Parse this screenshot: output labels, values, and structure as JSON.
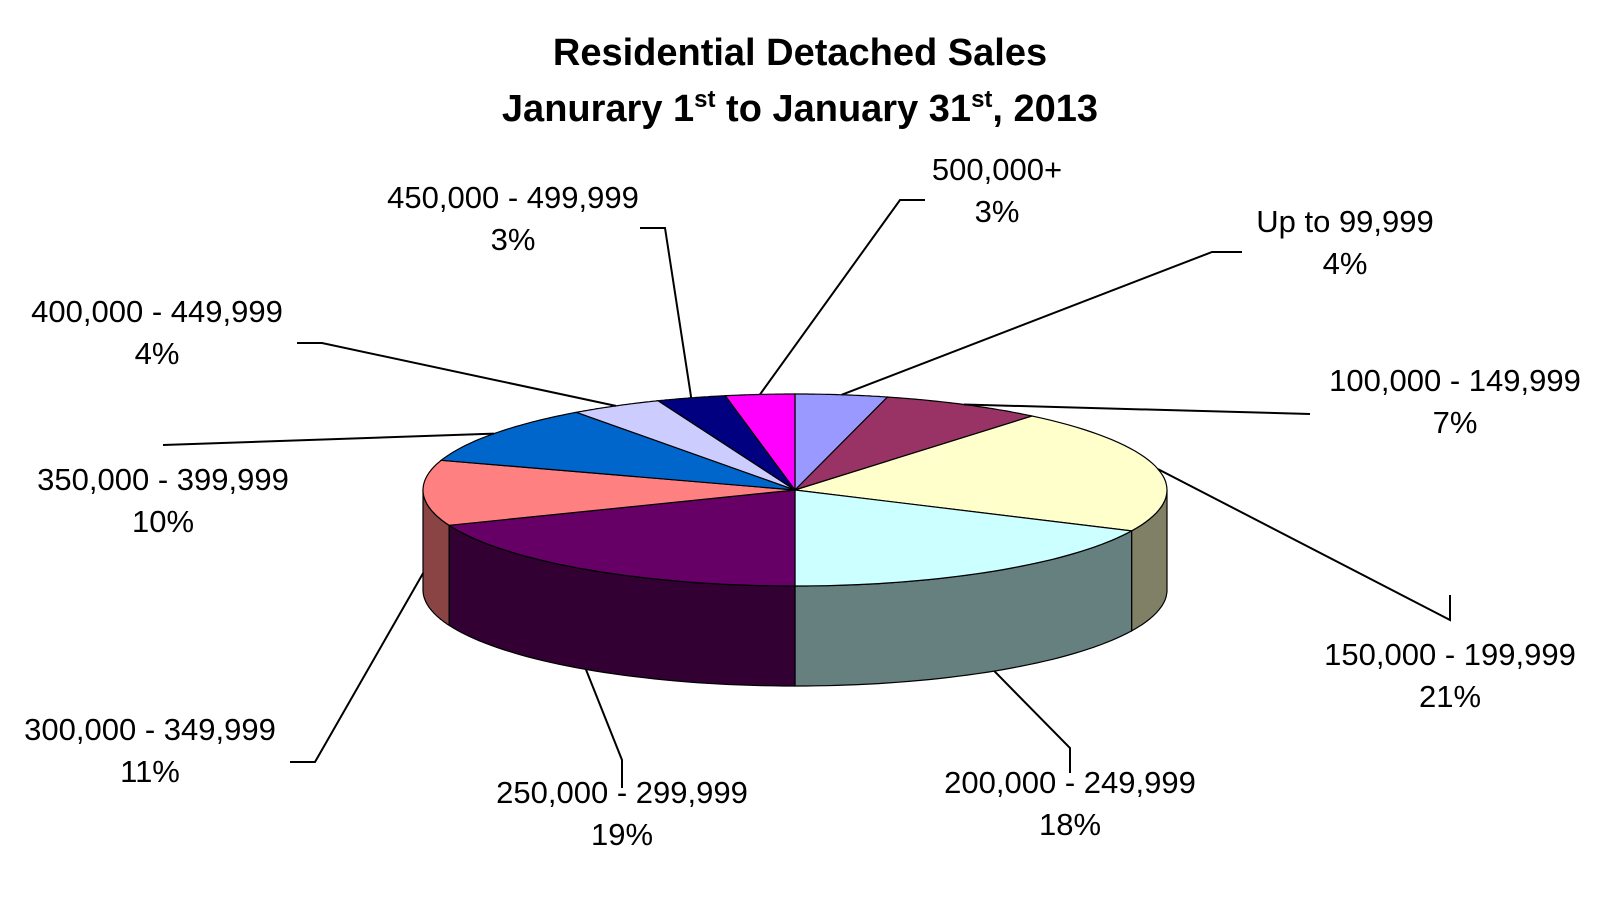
{
  "title": {
    "line1": "Residential Detached Sales",
    "line2_parts": [
      "Janurary 1",
      "st",
      " to January 31",
      "st",
      ", 2013"
    ]
  },
  "chart_data": {
    "type": "pie",
    "title": "Residential Detached Sales Janurary 1st to January 31st, 2013",
    "slices": [
      {
        "label": "Up to 99,999",
        "value": 4,
        "percent_label": "4%",
        "color": "#9999ff",
        "side_color": "#6b6bb3"
      },
      {
        "label": "100,000 - 149,999",
        "value": 7,
        "percent_label": "7%",
        "color": "#993366",
        "side_color": "#6b2447"
      },
      {
        "label": "150,000 - 199,999",
        "value": 21,
        "percent_label": "21%",
        "color": "#ffffcc",
        "side_color": "#808066"
      },
      {
        "label": "200,000 - 249,999",
        "value": 18,
        "percent_label": "18%",
        "color": "#ccffff",
        "side_color": "#668080"
      },
      {
        "label": "250,000 - 299,999",
        "value": 19,
        "percent_label": "19%",
        "color": "#660066",
        "side_color": "#330033"
      },
      {
        "label": "300,000 - 349,999",
        "value": 11,
        "percent_label": "11%",
        "color": "#ff8080",
        "side_color": "#8a4444"
      },
      {
        "label": "350,000 - 399,999",
        "value": 10,
        "percent_label": "10%",
        "color": "#0066cc",
        "side_color": "#003366"
      },
      {
        "label": "400,000 - 449,999",
        "value": 4,
        "percent_label": "4%",
        "color": "#ccccff",
        "side_color": "#8a8ab3"
      },
      {
        "label": "450,000 - 499,999",
        "value": 3,
        "percent_label": "3%",
        "color": "#000080",
        "side_color": "#000040"
      },
      {
        "label": "500,000+",
        "value": 3,
        "percent_label": "3%",
        "color": "#ff00ff",
        "side_color": "#990099"
      }
    ]
  }
}
